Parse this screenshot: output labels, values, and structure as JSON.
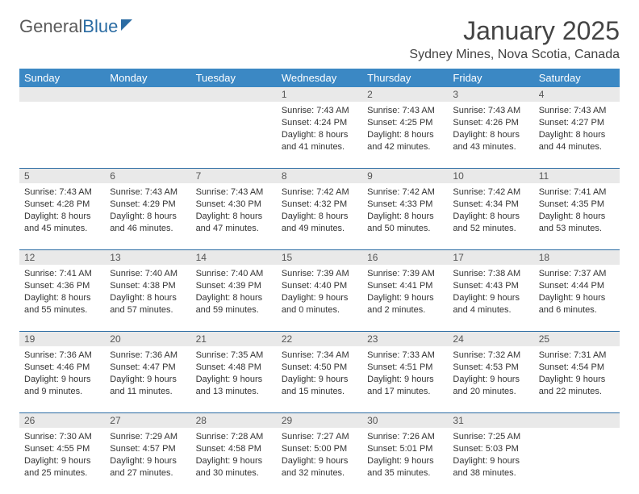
{
  "logo": {
    "text1": "General",
    "text2": "Blue"
  },
  "title": "January 2025",
  "location": "Sydney Mines, Nova Scotia, Canada",
  "colors": {
    "header_bg": "#3b88c4",
    "header_text": "#ffffff",
    "daynum_bg": "#e9e9e9",
    "rule": "#2b6ca3",
    "body_text": "#333333"
  },
  "dayNames": [
    "Sunday",
    "Monday",
    "Tuesday",
    "Wednesday",
    "Thursday",
    "Friday",
    "Saturday"
  ],
  "weeks": [
    {
      "nums": [
        "",
        "",
        "",
        "1",
        "2",
        "3",
        "4"
      ],
      "cells": [
        null,
        null,
        null,
        {
          "sunrise": "7:43 AM",
          "sunset": "4:24 PM",
          "dl1": "Daylight: 8 hours",
          "dl2": "and 41 minutes."
        },
        {
          "sunrise": "7:43 AM",
          "sunset": "4:25 PM",
          "dl1": "Daylight: 8 hours",
          "dl2": "and 42 minutes."
        },
        {
          "sunrise": "7:43 AM",
          "sunset": "4:26 PM",
          "dl1": "Daylight: 8 hours",
          "dl2": "and 43 minutes."
        },
        {
          "sunrise": "7:43 AM",
          "sunset": "4:27 PM",
          "dl1": "Daylight: 8 hours",
          "dl2": "and 44 minutes."
        }
      ]
    },
    {
      "nums": [
        "5",
        "6",
        "7",
        "8",
        "9",
        "10",
        "11"
      ],
      "cells": [
        {
          "sunrise": "7:43 AM",
          "sunset": "4:28 PM",
          "dl1": "Daylight: 8 hours",
          "dl2": "and 45 minutes."
        },
        {
          "sunrise": "7:43 AM",
          "sunset": "4:29 PM",
          "dl1": "Daylight: 8 hours",
          "dl2": "and 46 minutes."
        },
        {
          "sunrise": "7:43 AM",
          "sunset": "4:30 PM",
          "dl1": "Daylight: 8 hours",
          "dl2": "and 47 minutes."
        },
        {
          "sunrise": "7:42 AM",
          "sunset": "4:32 PM",
          "dl1": "Daylight: 8 hours",
          "dl2": "and 49 minutes."
        },
        {
          "sunrise": "7:42 AM",
          "sunset": "4:33 PM",
          "dl1": "Daylight: 8 hours",
          "dl2": "and 50 minutes."
        },
        {
          "sunrise": "7:42 AM",
          "sunset": "4:34 PM",
          "dl1": "Daylight: 8 hours",
          "dl2": "and 52 minutes."
        },
        {
          "sunrise": "7:41 AM",
          "sunset": "4:35 PM",
          "dl1": "Daylight: 8 hours",
          "dl2": "and 53 minutes."
        }
      ]
    },
    {
      "nums": [
        "12",
        "13",
        "14",
        "15",
        "16",
        "17",
        "18"
      ],
      "cells": [
        {
          "sunrise": "7:41 AM",
          "sunset": "4:36 PM",
          "dl1": "Daylight: 8 hours",
          "dl2": "and 55 minutes."
        },
        {
          "sunrise": "7:40 AM",
          "sunset": "4:38 PM",
          "dl1": "Daylight: 8 hours",
          "dl2": "and 57 minutes."
        },
        {
          "sunrise": "7:40 AM",
          "sunset": "4:39 PM",
          "dl1": "Daylight: 8 hours",
          "dl2": "and 59 minutes."
        },
        {
          "sunrise": "7:39 AM",
          "sunset": "4:40 PM",
          "dl1": "Daylight: 9 hours",
          "dl2": "and 0 minutes."
        },
        {
          "sunrise": "7:39 AM",
          "sunset": "4:41 PM",
          "dl1": "Daylight: 9 hours",
          "dl2": "and 2 minutes."
        },
        {
          "sunrise": "7:38 AM",
          "sunset": "4:43 PM",
          "dl1": "Daylight: 9 hours",
          "dl2": "and 4 minutes."
        },
        {
          "sunrise": "7:37 AM",
          "sunset": "4:44 PM",
          "dl1": "Daylight: 9 hours",
          "dl2": "and 6 minutes."
        }
      ]
    },
    {
      "nums": [
        "19",
        "20",
        "21",
        "22",
        "23",
        "24",
        "25"
      ],
      "cells": [
        {
          "sunrise": "7:36 AM",
          "sunset": "4:46 PM",
          "dl1": "Daylight: 9 hours",
          "dl2": "and 9 minutes."
        },
        {
          "sunrise": "7:36 AM",
          "sunset": "4:47 PM",
          "dl1": "Daylight: 9 hours",
          "dl2": "and 11 minutes."
        },
        {
          "sunrise": "7:35 AM",
          "sunset": "4:48 PM",
          "dl1": "Daylight: 9 hours",
          "dl2": "and 13 minutes."
        },
        {
          "sunrise": "7:34 AM",
          "sunset": "4:50 PM",
          "dl1": "Daylight: 9 hours",
          "dl2": "and 15 minutes."
        },
        {
          "sunrise": "7:33 AM",
          "sunset": "4:51 PM",
          "dl1": "Daylight: 9 hours",
          "dl2": "and 17 minutes."
        },
        {
          "sunrise": "7:32 AM",
          "sunset": "4:53 PM",
          "dl1": "Daylight: 9 hours",
          "dl2": "and 20 minutes."
        },
        {
          "sunrise": "7:31 AM",
          "sunset": "4:54 PM",
          "dl1": "Daylight: 9 hours",
          "dl2": "and 22 minutes."
        }
      ]
    },
    {
      "nums": [
        "26",
        "27",
        "28",
        "29",
        "30",
        "31",
        ""
      ],
      "cells": [
        {
          "sunrise": "7:30 AM",
          "sunset": "4:55 PM",
          "dl1": "Daylight: 9 hours",
          "dl2": "and 25 minutes."
        },
        {
          "sunrise": "7:29 AM",
          "sunset": "4:57 PM",
          "dl1": "Daylight: 9 hours",
          "dl2": "and 27 minutes."
        },
        {
          "sunrise": "7:28 AM",
          "sunset": "4:58 PM",
          "dl1": "Daylight: 9 hours",
          "dl2": "and 30 minutes."
        },
        {
          "sunrise": "7:27 AM",
          "sunset": "5:00 PM",
          "dl1": "Daylight: 9 hours",
          "dl2": "and 32 minutes."
        },
        {
          "sunrise": "7:26 AM",
          "sunset": "5:01 PM",
          "dl1": "Daylight: 9 hours",
          "dl2": "and 35 minutes."
        },
        {
          "sunrise": "7:25 AM",
          "sunset": "5:03 PM",
          "dl1": "Daylight: 9 hours",
          "dl2": "and 38 minutes."
        },
        null
      ]
    }
  ],
  "labels": {
    "sunrise": "Sunrise: ",
    "sunset": "Sunset: "
  }
}
